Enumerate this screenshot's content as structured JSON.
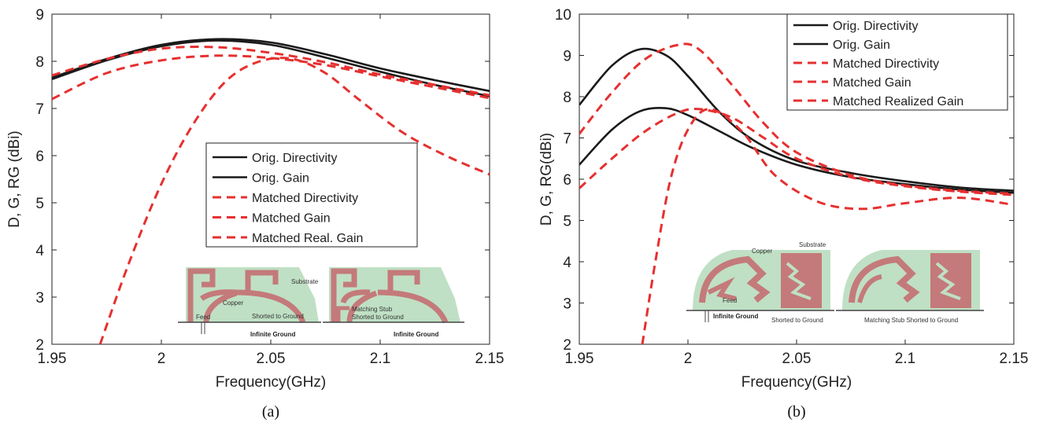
{
  "chart_data": [
    {
      "type": "line",
      "caption": "(a)",
      "xlabel": "Frequency(GHz)",
      "ylabel": "D, G, RG (dBi)",
      "xlim": [
        1.95,
        2.15
      ],
      "ylim": [
        2,
        9
      ],
      "xticks": [
        "1.95",
        "2",
        "2.05",
        "2.1",
        "2.15"
      ],
      "yticks": [
        "2",
        "3",
        "4",
        "5",
        "6",
        "7",
        "8",
        "9"
      ],
      "legend_position": "center-right",
      "series": [
        {
          "name": "Orig. Directivity",
          "color": "#1a1a1a",
          "dash": "solid",
          "x": [
            1.95,
            1.975,
            2.0,
            2.025,
            2.05,
            2.075,
            2.1,
            2.125,
            2.15
          ],
          "y": [
            7.65,
            8.05,
            8.35,
            8.47,
            8.4,
            8.15,
            7.85,
            7.6,
            7.37
          ]
        },
        {
          "name": "Orig. Gain",
          "color": "#1a1a1a",
          "dash": "solid",
          "x": [
            1.95,
            1.975,
            2.0,
            2.025,
            2.05,
            2.075,
            2.1,
            2.125,
            2.15
          ],
          "y": [
            7.62,
            8.02,
            8.32,
            8.44,
            8.35,
            8.08,
            7.78,
            7.5,
            7.26
          ]
        },
        {
          "name": "Matched Directivity",
          "color": "#e63030",
          "dash": "dashed",
          "x": [
            1.95,
            1.975,
            2.0,
            2.025,
            2.05,
            2.075,
            2.1,
            2.125,
            2.15
          ],
          "y": [
            7.7,
            8.05,
            8.27,
            8.3,
            8.18,
            7.98,
            7.72,
            7.5,
            7.28
          ]
        },
        {
          "name": "Matched Gain",
          "color": "#e63030",
          "dash": "dashed",
          "x": [
            1.95,
            1.975,
            2.0,
            2.025,
            2.05,
            2.075,
            2.1,
            2.125,
            2.15
          ],
          "y": [
            7.2,
            7.75,
            8.02,
            8.12,
            8.07,
            7.92,
            7.68,
            7.45,
            7.22
          ]
        },
        {
          "name": "Matched Real. Gain",
          "color": "#e63030",
          "dash": "dashed",
          "x": [
            1.972,
            1.985,
            2.0,
            2.015,
            2.03,
            2.045,
            2.06,
            2.075,
            2.09,
            2.11,
            2.13,
            2.15
          ],
          "y": [
            2.0,
            3.7,
            5.4,
            6.7,
            7.6,
            8.0,
            8.05,
            7.75,
            7.2,
            6.5,
            6.0,
            5.6
          ]
        }
      ]
    },
    {
      "type": "line",
      "caption": "(b)",
      "xlabel": "Frequency(GHz)",
      "ylabel": "D, G, RG(dBi)",
      "xlim": [
        1.95,
        2.15
      ],
      "ylim": [
        2,
        10
      ],
      "xticks": [
        "1.95",
        "2",
        "2.05",
        "2.1",
        "2.15"
      ],
      "yticks": [
        "2",
        "3",
        "4",
        "5",
        "6",
        "7",
        "8",
        "9",
        "10"
      ],
      "legend_position": "top-right",
      "series": [
        {
          "name": "Orig. Directivity",
          "color": "#1a1a1a",
          "dash": "solid",
          "x": [
            1.95,
            1.965,
            1.978,
            1.99,
            2.0,
            2.015,
            2.03,
            2.05,
            2.075,
            2.1,
            2.125,
            2.15
          ],
          "y": [
            7.8,
            8.75,
            9.15,
            9.0,
            8.5,
            7.6,
            6.95,
            6.45,
            6.15,
            5.95,
            5.8,
            5.72
          ]
        },
        {
          "name": "Orig. Gain",
          "color": "#1a1a1a",
          "dash": "solid",
          "x": [
            1.95,
            1.965,
            1.978,
            1.99,
            2.0,
            2.015,
            2.03,
            2.05,
            2.075,
            2.1,
            2.125,
            2.15
          ],
          "y": [
            6.35,
            7.2,
            7.65,
            7.72,
            7.55,
            7.15,
            6.75,
            6.35,
            6.05,
            5.88,
            5.75,
            5.67
          ]
        },
        {
          "name": "Matched Directivity",
          "color": "#e63030",
          "dash": "dashed",
          "x": [
            1.95,
            1.965,
            1.98,
            1.995,
            2.005,
            2.02,
            2.035,
            2.05,
            2.075,
            2.1,
            2.125,
            2.15
          ],
          "y": [
            7.1,
            8.1,
            8.9,
            9.25,
            9.15,
            8.3,
            7.35,
            6.65,
            6.1,
            5.85,
            5.72,
            5.65
          ]
        },
        {
          "name": "Matched Gain",
          "color": "#e63030",
          "dash": "dashed",
          "x": [
            1.95,
            1.965,
            1.98,
            1.995,
            2.005,
            2.02,
            2.035,
            2.05,
            2.075,
            2.1,
            2.125,
            2.15
          ],
          "y": [
            5.78,
            6.5,
            7.15,
            7.6,
            7.7,
            7.5,
            7.0,
            6.5,
            6.05,
            5.83,
            5.7,
            5.62
          ]
        },
        {
          "name": "Matched Realized Gain",
          "color": "#e63030",
          "dash": "dashed",
          "x": [
            1.979,
            1.985,
            1.992,
            2.0,
            2.01,
            2.025,
            2.04,
            2.06,
            2.08,
            2.1,
            2.125,
            2.15
          ],
          "y": [
            2.0,
            4.0,
            6.0,
            7.2,
            7.7,
            7.15,
            6.1,
            5.45,
            5.28,
            5.42,
            5.55,
            5.38
          ]
        }
      ]
    }
  ],
  "insets": {
    "a": {
      "left": {
        "substrate": "Substrate",
        "copper": "Copper",
        "feed": "Feed",
        "shorted": "Shorted to Ground",
        "ground": "Infinite Ground"
      },
      "right": {
        "stub": "Matching Stub",
        "shorted": "Shorted to Ground",
        "ground": "Infinite Ground"
      }
    },
    "b": {
      "left": {
        "copper": "Copper",
        "substrate": "Substrate",
        "feed": "Feed",
        "ground": "Infinite Ground",
        "shorted": "Shorted to Ground"
      },
      "right": {
        "label": "Matching Stub Shorted to Ground"
      }
    }
  },
  "colors": {
    "substrate": "#bfe0c4",
    "copper": "#c47a7a",
    "orig": "#1a1a1a",
    "matched": "#e63030"
  }
}
